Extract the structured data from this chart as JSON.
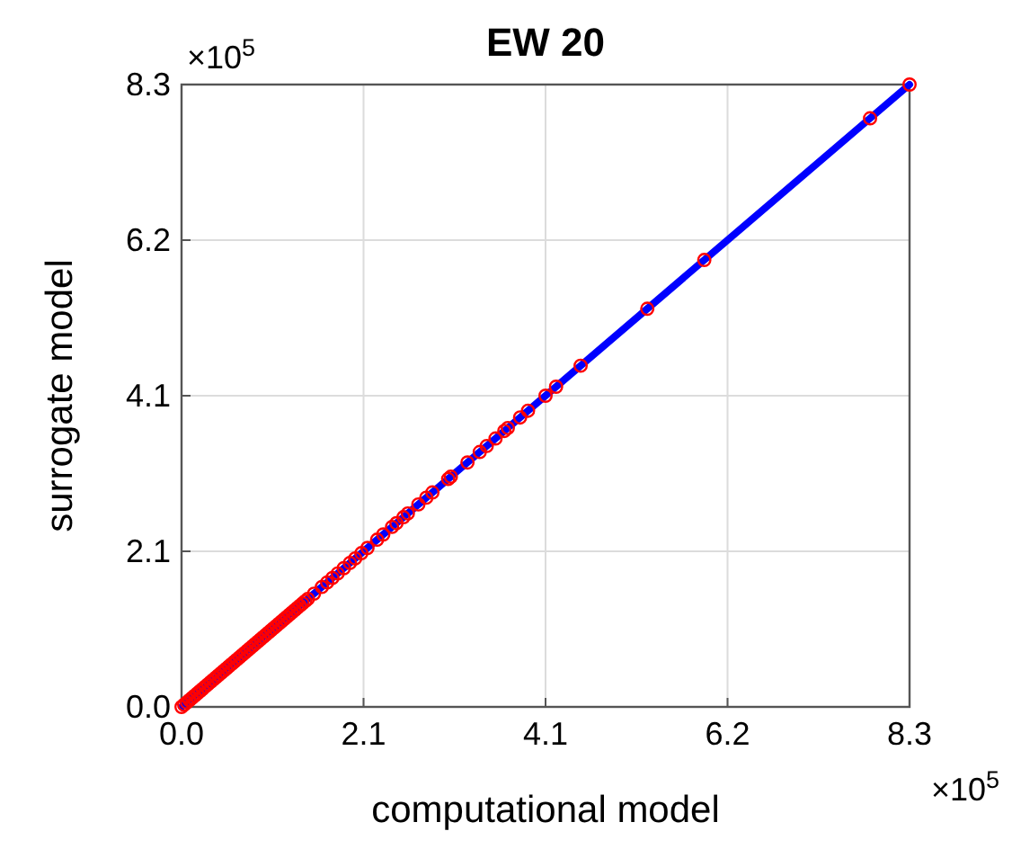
{
  "chart_data": {
    "type": "scatter",
    "title": "EW 20",
    "xlabel": "computational model",
    "ylabel": "surrogate model",
    "annotations": [
      "×10$^{5}$",
      "×10$^{5}$"
    ],
    "xlim": [
      0,
      8.3
    ],
    "ylim": [
      0,
      8.3
    ],
    "xticks": [
      {
        "value": 0,
        "label": "0.0"
      },
      {
        "value": 2.075,
        "label": "2.1"
      },
      {
        "value": 4.15,
        "label": "4.1"
      },
      {
        "value": 6.225,
        "label": "6.2"
      },
      {
        "value": 8.3,
        "label": "8.3"
      }
    ],
    "yticks": [
      {
        "value": 0,
        "label": "0.0"
      },
      {
        "value": 2.075,
        "label": "2.1"
      },
      {
        "value": 4.15,
        "label": "4.1"
      },
      {
        "value": 6.225,
        "label": "6.2"
      },
      {
        "value": 8.3,
        "label": "8.3"
      }
    ],
    "grid": true,
    "series": [
      {
        "type": "line",
        "color": "#0000ff",
        "x": [
          0,
          8.3
        ],
        "values": [
          0,
          8.3
        ]
      },
      {
        "color": "#ff0000",
        "marker": "circle",
        "x": [
          0,
          0.03,
          0.06,
          0.09,
          0.12,
          0.15,
          0.18,
          0.21,
          0.24,
          0.27,
          0.3,
          0.33,
          0.36,
          0.39,
          0.42,
          0.45,
          0.48,
          0.51,
          0.54,
          0.57,
          0.6,
          0.63,
          0.66,
          0.69,
          0.72,
          0.75,
          0.78,
          0.81,
          0.84,
          0.87,
          0.9,
          0.93,
          0.96,
          0.99,
          1.02,
          1.05,
          1.08,
          1.11,
          1.14,
          1.17,
          1.2,
          1.23,
          1.26,
          1.29,
          1.32,
          1.35,
          1.38,
          1.41,
          1.44,
          1.51,
          1.6,
          1.66,
          1.72,
          1.78,
          1.85,
          1.92,
          1.98,
          2.05,
          2.12,
          2.23,
          2.3,
          2.4,
          2.45,
          2.53,
          2.58,
          2.7,
          2.79,
          2.86,
          3.04,
          3.07,
          3.26,
          3.4,
          3.48,
          3.58,
          3.68,
          3.72,
          3.86,
          3.95,
          4.15,
          4.27,
          4.55,
          5.31,
          5.96,
          7.85,
          8.3
        ],
        "values": [
          0,
          0.03,
          0.06,
          0.09,
          0.12,
          0.15,
          0.18,
          0.21,
          0.24,
          0.27,
          0.3,
          0.33,
          0.36,
          0.39,
          0.42,
          0.45,
          0.48,
          0.51,
          0.54,
          0.57,
          0.6,
          0.63,
          0.66,
          0.69,
          0.72,
          0.75,
          0.78,
          0.81,
          0.84,
          0.87,
          0.9,
          0.93,
          0.96,
          0.99,
          1.02,
          1.05,
          1.08,
          1.11,
          1.14,
          1.17,
          1.2,
          1.23,
          1.26,
          1.29,
          1.32,
          1.35,
          1.38,
          1.41,
          1.44,
          1.51,
          1.6,
          1.66,
          1.72,
          1.78,
          1.85,
          1.92,
          1.98,
          2.05,
          2.12,
          2.23,
          2.3,
          2.4,
          2.45,
          2.53,
          2.58,
          2.7,
          2.79,
          2.86,
          3.04,
          3.07,
          3.26,
          3.4,
          3.48,
          3.58,
          3.68,
          3.72,
          3.86,
          3.95,
          4.15,
          4.27,
          4.55,
          5.31,
          5.96,
          7.85,
          8.3
        ]
      }
    ]
  }
}
